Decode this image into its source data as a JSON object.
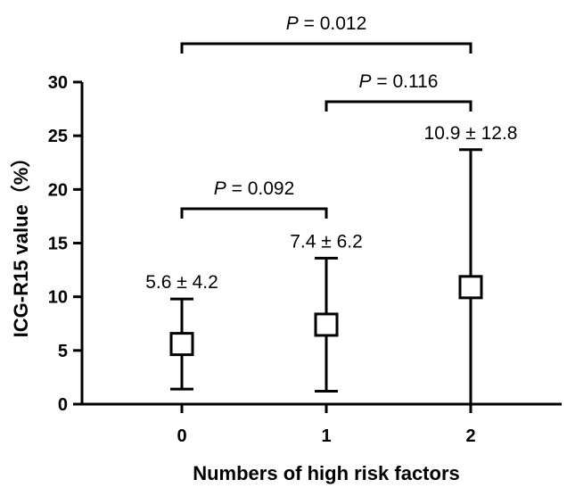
{
  "chart_data": {
    "type": "scatter",
    "xlabel": "Numbers of high risk factors",
    "ylabel": "ICG-R15 value（%）",
    "categories": [
      "0",
      "1",
      "2"
    ],
    "ylim": [
      0,
      30
    ],
    "yticks": [
      "0",
      "5",
      "10",
      "15",
      "20",
      "25",
      "30"
    ],
    "series": [
      {
        "values": [
          5.6,
          7.4,
          10.9
        ],
        "error_low": [
          1.4,
          1.2,
          0
        ],
        "error_high": [
          9.8,
          13.6,
          23.7
        ]
      }
    ],
    "data_labels": [
      "5.6 ± 4.2",
      "7.4 ± 6.2",
      "10.9 ± 12.8"
    ],
    "comparisons": [
      {
        "from": "0",
        "to": "1",
        "p_symbol": "P",
        "p_text": " = 0.092"
      },
      {
        "from": "1",
        "to": "2",
        "p_symbol": "P",
        "p_text": " = 0.116"
      },
      {
        "from": "0",
        "to": "2",
        "p_symbol": "P",
        "p_text": " = 0.012"
      }
    ],
    "grid": false,
    "marker": "open-square",
    "color": "#000000"
  }
}
